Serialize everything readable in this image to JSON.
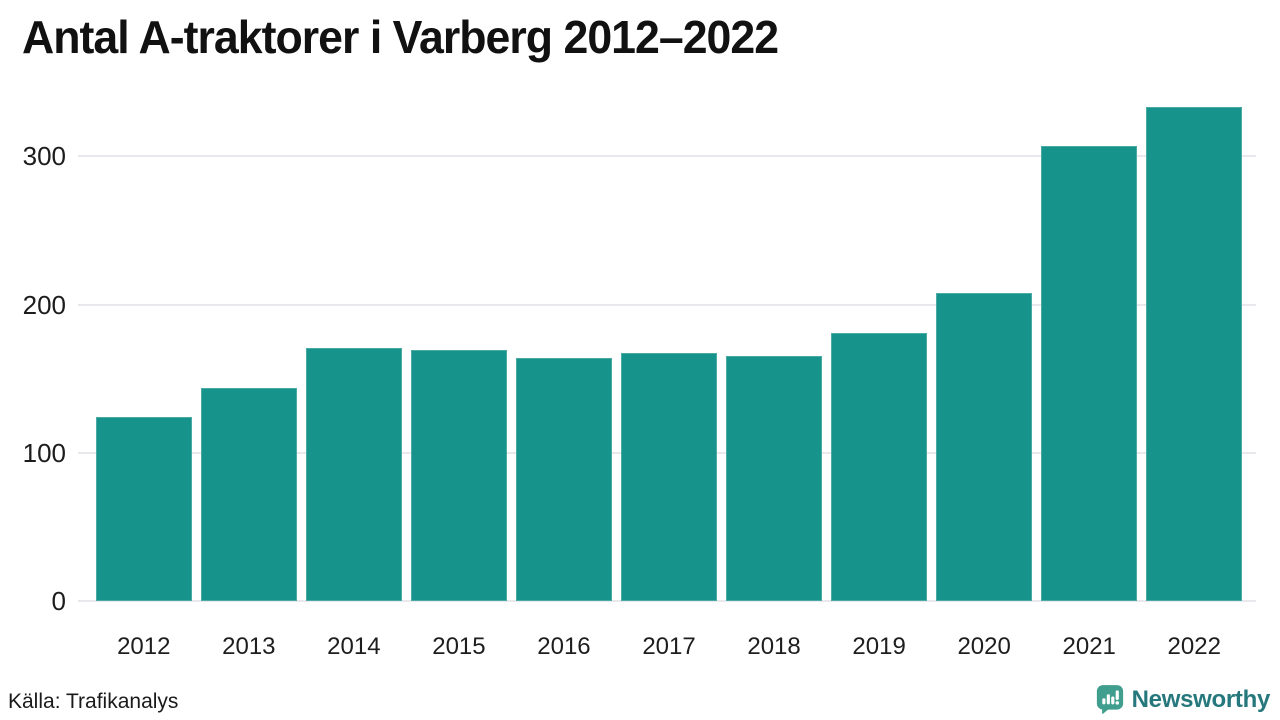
{
  "title": "Antal A-traktorer i Varberg 2012–2022",
  "source": "Källa: Trafikanalys",
  "brand": {
    "name": "Newsworthy",
    "text_color": "#26787d",
    "icon_color": "#3f9e8e"
  },
  "colors": {
    "bar": "#16948b",
    "gridline": "#e8e8ed",
    "text": "#1a1a1a",
    "background": "#ffffff"
  },
  "chart_data": {
    "type": "bar",
    "title": "Antal A-traktorer i Varberg 2012–2022",
    "categories": [
      "2012",
      "2013",
      "2014",
      "2015",
      "2016",
      "2017",
      "2018",
      "2019",
      "2020",
      "2021",
      "2022"
    ],
    "values": [
      124,
      144,
      171,
      169,
      164,
      167,
      165,
      181,
      208,
      307,
      333
    ],
    "xlabel": "",
    "ylabel": "",
    "yticks": [
      0,
      100,
      200,
      300
    ],
    "ylim": [
      0,
      340
    ],
    "grid": true,
    "legend": false,
    "bar_color": "#16948b"
  }
}
